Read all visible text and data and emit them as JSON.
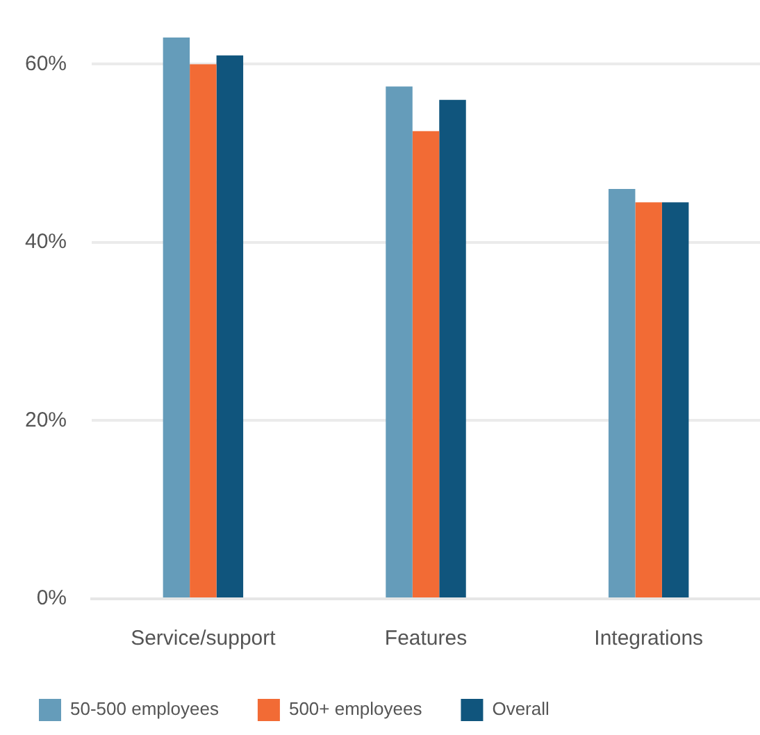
{
  "chart_data": {
    "type": "bar",
    "categories": [
      "Service/support",
      "Features",
      "Integrations"
    ],
    "series": [
      {
        "name": "50-500 employees",
        "color": "#659cba",
        "values": [
          63,
          57.5,
          46
        ]
      },
      {
        "name": "500+ employees",
        "color": "#f26b35",
        "values": [
          60,
          52.5,
          44.5
        ]
      },
      {
        "name": "Overall",
        "color": "#10557d",
        "values": [
          61,
          56,
          44.5
        ]
      }
    ],
    "ylim": [
      0,
      63
    ],
    "yticks": [
      {
        "value": 0,
        "label": "0%"
      },
      {
        "value": 20,
        "label": "20%"
      },
      {
        "value": 40,
        "label": "40%"
      },
      {
        "value": 60,
        "label": "60%"
      }
    ],
    "grid": "y",
    "legend": "bottom"
  }
}
